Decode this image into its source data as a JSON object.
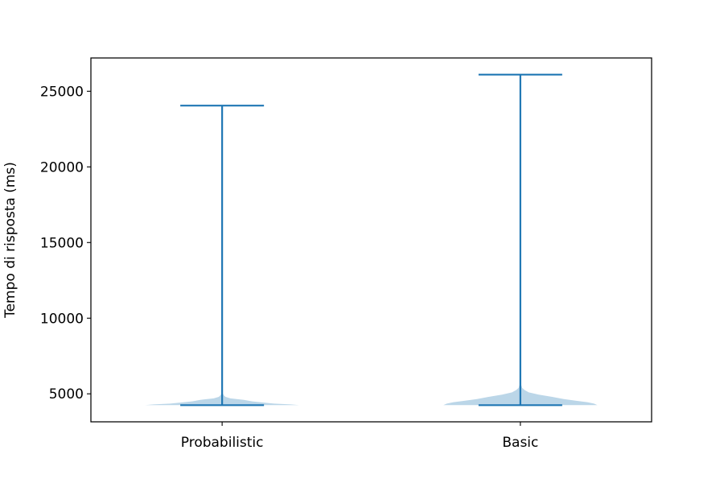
{
  "chart_data": {
    "type": "violin",
    "title": "",
    "xlabel": "",
    "ylabel": "Tempo di risposta (ms)",
    "categories": [
      "Probabilistic",
      "Basic"
    ],
    "ylim": [
      3150,
      27200
    ],
    "yticks": [
      5000,
      10000,
      15000,
      20000,
      25000
    ],
    "ytick_labels": [
      "5000",
      "10000",
      "15000",
      "20000",
      "25000"
    ],
    "grid": false,
    "series": [
      {
        "category": "Probabilistic",
        "min": 4250,
        "max": 24050,
        "density": [
          [
            4250,
            0.92
          ],
          [
            4300,
            0.82
          ],
          [
            4350,
            0.62
          ],
          [
            4420,
            0.5
          ],
          [
            4500,
            0.36
          ],
          [
            4600,
            0.26
          ],
          [
            4700,
            0.1
          ],
          [
            4800,
            0.04
          ],
          [
            4900,
            0.02
          ],
          [
            5000,
            0.01
          ]
        ]
      },
      {
        "category": "Basic",
        "min": 4250,
        "max": 26100,
        "density": [
          [
            4250,
            0.92
          ],
          [
            4350,
            0.88
          ],
          [
            4450,
            0.8
          ],
          [
            4550,
            0.66
          ],
          [
            4650,
            0.52
          ],
          [
            4800,
            0.38
          ],
          [
            4950,
            0.22
          ],
          [
            5100,
            0.1
          ],
          [
            5250,
            0.05
          ],
          [
            5400,
            0.02
          ],
          [
            5600,
            0.01
          ],
          [
            17600,
            0.004
          ],
          [
            17900,
            0.005
          ],
          [
            18200,
            0.004
          ]
        ]
      }
    ],
    "colors": {
      "line": "#1f77b4",
      "body": "#1f77b4",
      "body_opacity": 0.3
    }
  }
}
